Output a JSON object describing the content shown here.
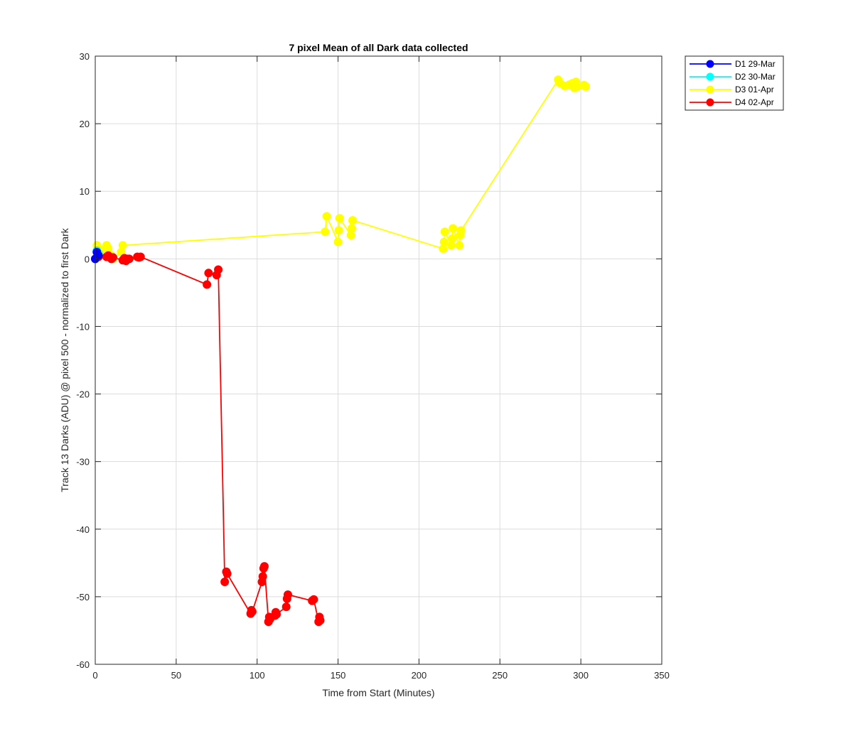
{
  "chart_data": {
    "type": "line",
    "title": "7 pixel Mean of all Dark data collected",
    "xlabel": "Time from Start (Minutes)",
    "ylabel": "Track 13 Darks (ADU) @ pixel 500 - normalized to first Dark",
    "xlim": [
      0,
      350
    ],
    "ylim": [
      -60,
      30
    ],
    "xticks": [
      0,
      50,
      100,
      150,
      200,
      250,
      300,
      350
    ],
    "yticks": [
      -60,
      -50,
      -40,
      -30,
      -20,
      -10,
      0,
      10,
      20,
      30
    ],
    "grid": true,
    "legend_position": "outside-top-right",
    "series": [
      {
        "name": "D1 29-Mar",
        "color": "#0000ff",
        "x": [
          0,
          1,
          2
        ],
        "y": [
          0,
          1.0,
          0.5
        ]
      },
      {
        "name": "D2 30-Mar",
        "color": "#00ffff",
        "x": [
          0,
          1,
          2
        ],
        "y": [
          0,
          1.2,
          0.8
        ]
      },
      {
        "name": "D3 01-Apr",
        "color": "#ffff00",
        "x": [
          0,
          1,
          2,
          3,
          4,
          7,
          8,
          10,
          11,
          16,
          17,
          142,
          143,
          150,
          150.5,
          151,
          158,
          158.5,
          159,
          215,
          215.5,
          216,
          220,
          220.5,
          221,
          225,
          225.5,
          226,
          286,
          287,
          290,
          293,
          295,
          296,
          297,
          298,
          302,
          303
        ],
        "y": [
          0,
          2.0,
          1.5,
          1.0,
          1.2,
          2.0,
          1.5,
          0.5,
          0.0,
          1.0,
          2.0,
          4.0,
          6.3,
          2.5,
          4.2,
          6.0,
          3.5,
          4.5,
          5.7,
          1.5,
          2.5,
          4.0,
          2.0,
          3.0,
          4.5,
          2.0,
          3.5,
          4.2,
          26.5,
          26.0,
          25.6,
          25.8,
          26.0,
          25.3,
          26.2,
          25.5,
          25.7,
          25.5
        ]
      },
      {
        "name": "D4 02-Apr",
        "color": "#ff0000",
        "x": [
          0,
          1,
          2,
          7,
          8,
          10,
          11,
          17,
          18,
          19,
          20,
          21,
          26,
          27,
          28,
          69,
          70,
          75,
          76,
          80,
          81,
          81.5,
          96,
          96.5,
          97,
          103,
          103.5,
          104,
          104.5,
          107,
          107.5,
          108,
          111,
          111.5,
          112,
          118,
          118.5,
          119,
          134,
          135,
          138,
          138.5,
          139
        ],
        "y": [
          0,
          0.2,
          0.3,
          0.3,
          0.5,
          0.0,
          0.2,
          -0.2,
          0.1,
          -0.3,
          0.0,
          0.0,
          0.3,
          0.2,
          0.3,
          -3.8,
          -2.1,
          -2.4,
          -1.6,
          -47.8,
          -46.3,
          -46.6,
          -52.5,
          -52.0,
          -52.2,
          -47.8,
          -47.0,
          -45.8,
          -45.5,
          -53.7,
          -53.0,
          -53.3,
          -52.8,
          -52.3,
          -52.6,
          -51.5,
          -50.3,
          -49.7,
          -50.6,
          -50.4,
          -53.7,
          -53.0,
          -53.5
        ]
      }
    ]
  }
}
